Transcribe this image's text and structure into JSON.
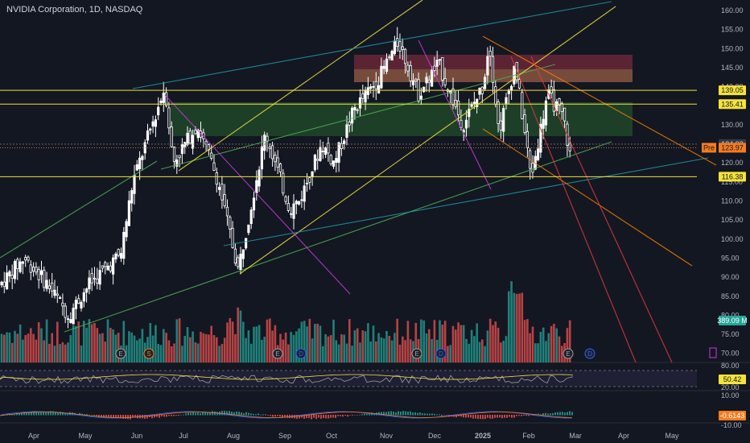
{
  "header": {
    "title": "NVIDIA Corporation, 1D, NASDAQ"
  },
  "price_axis": {
    "ticks": [
      "160.00",
      "155.00",
      "150.00",
      "145.00",
      "140.00",
      "135.00",
      "130.00",
      "125.00",
      "120.00",
      "115.00",
      "110.00",
      "105.00",
      "100.00",
      "95.00",
      "90.00",
      "85.00",
      "80.00",
      "75.00",
      "70.00"
    ]
  },
  "price_tags": {
    "level_139": "139.05",
    "level_135": "135.41",
    "level_124_hidden": "124.92",
    "premarket_label": "Pre",
    "premarket_price": "123.97",
    "level_116": "116.38",
    "volume": "389.09 M"
  },
  "rsi_axis": {
    "ticks": [
      "80.00",
      "20.00"
    ],
    "value": "50.42"
  },
  "macd_axis": {
    "ticks": [
      "10.00",
      "-10.00"
    ],
    "value": "-0.6143"
  },
  "time_axis": {
    "labels": [
      "Apr",
      "May",
      "Jun",
      "Jul",
      "Aug",
      "Sep",
      "Oct",
      "Nov",
      "Dec",
      "2025",
      "Feb",
      "Mar",
      "Apr",
      "May"
    ]
  },
  "events": {
    "earnings_letter": "E",
    "dividend_letter": "D",
    "split_letter": "S",
    "flag_letter": "E"
  },
  "colors": {
    "background": "#131722",
    "up": "#ffffff",
    "down": "#ffffff",
    "vol_up": "#26a69a",
    "vol_down": "#ef5350",
    "yellow_line": "#f5e33b",
    "green_line": "#4caf50",
    "magenta_line": "#c93ad9",
    "blue_line": "#2196a8",
    "orange_line": "#f57c00",
    "red_line": "#e53935",
    "premarket": "#f57c20"
  },
  "chart_data": {
    "type": "candlestick",
    "title": "NVIDIA Corporation, 1D, NASDAQ",
    "x": [
      "Apr",
      "May",
      "Jun",
      "Jul",
      "Aug",
      "Sep",
      "Oct",
      "Nov",
      "Dec",
      "2025",
      "Feb",
      "Mar"
    ],
    "ylim": [
      70,
      160
    ],
    "closes_by_month": [
      87.0,
      88.0,
      120.0,
      125.0,
      110.0,
      105.0,
      121.0,
      138.0,
      135.0,
      138.0,
      124.0,
      120.0
    ],
    "key_levels": [
      139.05,
      135.41,
      116.38
    ],
    "premarket_price": 123.97,
    "last_volume": "389.09 M",
    "rsi": {
      "value": 50.42,
      "ylim": [
        20,
        80
      ]
    },
    "macd": {
      "value": -0.6143,
      "ylim": [
        -10,
        10
      ]
    }
  }
}
